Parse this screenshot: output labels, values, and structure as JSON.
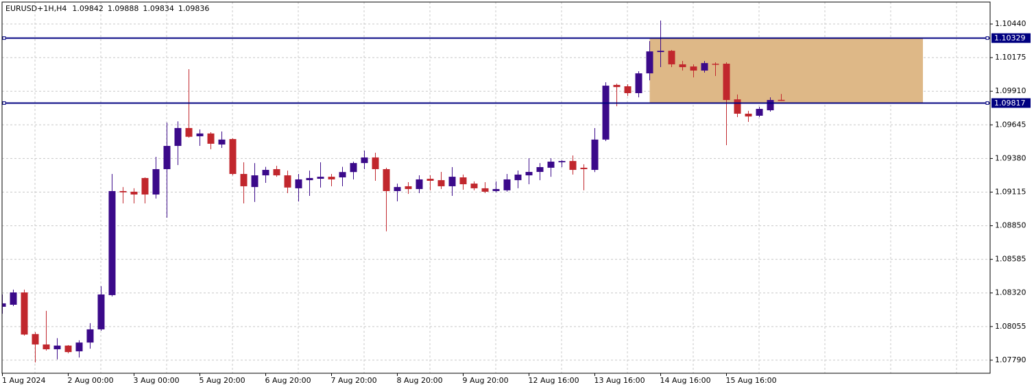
{
  "chart_data": {
    "type": "candlestick",
    "symbol": "EURUSD+1H,H4",
    "categories": [
      "1 Aug 2024",
      null,
      null,
      null,
      null,
      null,
      "2 Aug 00:00",
      null,
      null,
      null,
      null,
      null,
      "3 Aug 00:00",
      null,
      null,
      null,
      null,
      null,
      "5 Aug 20:00",
      null,
      null,
      null,
      null,
      null,
      "6 Aug 20:00",
      null,
      null,
      null,
      null,
      null,
      "7 Aug 20:00",
      null,
      null,
      null,
      null,
      null,
      "8 Aug 20:00",
      null,
      null,
      null,
      null,
      null,
      "9 Aug 20:00",
      null,
      null,
      null,
      null,
      null,
      "12 Aug 16:00",
      null,
      null,
      null,
      null,
      null,
      "13 Aug 16:00",
      null,
      null,
      null,
      null,
      null,
      "14 Aug 16:00",
      null,
      null,
      null,
      null,
      null,
      "15 Aug 16:00",
      null,
      null,
      null,
      null,
      null
    ],
    "open": [
      1.08211,
      1.08227,
      1.08324,
      1.07996,
      1.07914,
      1.07876,
      1.07905,
      1.0786,
      1.07929,
      1.08033,
      1.08303,
      1.09123,
      1.09118,
      1.09226,
      1.09096,
      1.09296,
      1.09479,
      1.0962,
      1.09555,
      1.09577,
      1.0949,
      1.09533,
      1.09258,
      1.09155,
      1.09247,
      1.09296,
      1.09247,
      1.09145,
      1.09209,
      1.0922,
      1.09236,
      1.09231,
      1.09273,
      1.09344,
      1.09388,
      1.09296,
      1.09123,
      1.09161,
      1.09139,
      1.0922,
      1.09209,
      1.09161,
      1.09231,
      1.09182,
      1.09145,
      1.09123,
      1.09129,
      1.09209,
      1.09247,
      1.09274,
      1.09307,
      1.0935,
      1.0936,
      1.09307,
      1.0929,
      1.09529,
      1.0996,
      1.09949,
      1.09895,
      1.10051,
      1.10219,
      1.10229,
      1.10122,
      1.10105,
      1.10073,
      1.10127,
      1.10127,
      1.09846,
      1.09733,
      1.09717,
      1.0976,
      1.09842
    ],
    "high": [
      1.08308,
      1.08346,
      1.08346,
      1.08011,
      1.08179,
      1.07964,
      1.07909,
      1.07947,
      1.08082,
      1.08373,
      1.09258,
      1.09155,
      1.09145,
      1.09231,
      1.09393,
      1.09663,
      1.09672,
      1.10084,
      1.09609,
      1.09587,
      1.09593,
      1.09539,
      1.0935,
      1.09344,
      1.09314,
      1.09322,
      1.09284,
      1.09258,
      1.09284,
      1.0935,
      1.09258,
      1.09314,
      1.09355,
      1.09442,
      1.09425,
      1.09307,
      1.09182,
      1.09193,
      1.09247,
      1.09247,
      1.09274,
      1.09312,
      1.09253,
      1.09199,
      1.09193,
      1.09199,
      1.09258,
      1.09285,
      1.09382,
      1.09344,
      1.09382,
      1.09366,
      1.09404,
      1.09334,
      1.0962,
      1.09981,
      1.0997,
      1.09965,
      1.10068,
      1.10305,
      1.10467,
      1.10235,
      1.10149,
      1.10122,
      1.10149,
      1.10138,
      1.10138,
      1.09884,
      1.09755,
      1.09787,
      1.09862,
      1.09888
    ],
    "low": [
      1.08157,
      1.08216,
      1.07984,
      1.07772,
      1.07866,
      1.07796,
      1.07844,
      1.07811,
      1.07881,
      1.08022,
      1.08292,
      1.09026,
      1.09026,
      1.09026,
      1.09064,
      1.08913,
      1.09328,
      1.09544,
      1.09479,
      1.09453,
      1.09463,
      1.09247,
      1.09026,
      1.09037,
      1.09188,
      1.09236,
      1.09107,
      1.09041,
      1.09085,
      1.09151,
      1.09161,
      1.09161,
      1.09215,
      1.09296,
      1.09204,
      1.08806,
      1.09042,
      1.09101,
      1.09107,
      1.09129,
      1.09139,
      1.09085,
      1.09134,
      1.09129,
      1.09107,
      1.09113,
      1.09118,
      1.09145,
      1.09177,
      1.09209,
      1.09236,
      1.09312,
      1.09253,
      1.09129,
      1.09273,
      1.09517,
      1.09792,
      1.09873,
      1.09862,
      1.09996,
      1.101,
      1.101,
      1.10073,
      1.10019,
      1.10057,
      1.1003,
      1.09485,
      1.09706,
      1.09668,
      1.09706,
      1.09749,
      1.09834
    ],
    "close": [
      1.08238,
      1.08324,
      1.07992,
      1.07914,
      1.07876,
      1.07905,
      1.07854,
      1.07929,
      1.08033,
      1.08308,
      1.09123,
      1.09113,
      1.09096,
      1.09096,
      1.09296,
      1.09479,
      1.0962,
      1.09551,
      1.09577,
      1.09496,
      1.09529,
      1.09258,
      1.09161,
      1.09247,
      1.0929,
      1.09247,
      1.09151,
      1.09215,
      1.09226,
      1.09236,
      1.09215,
      1.09273,
      1.09344,
      1.09388,
      1.09296,
      1.09123,
      1.09155,
      1.09139,
      1.09215,
      1.09204,
      1.09161,
      1.09236,
      1.09177,
      1.09145,
      1.09118,
      1.09139,
      1.09215,
      1.09253,
      1.09274,
      1.09312,
      1.09355,
      1.0936,
      1.0929,
      1.09296,
      1.09529,
      1.09954,
      1.09943,
      1.09895,
      1.10051,
      1.10224,
      1.10229,
      1.10122,
      1.101,
      1.10073,
      1.10132,
      1.10122,
      1.09841,
      1.09733,
      1.09711,
      1.09771,
      1.09841,
      1.09836
    ],
    "up_color": "#3b0a8a",
    "down_color": "#c1272d",
    "ylim": [
      1.07687,
      1.10613
    ],
    "yticks": [
      {
        "value": 1.1044,
        "label": "1.10440"
      },
      1.10175,
      {
        "value": 1.0991,
        "label": "1.09910"
      },
      1.09645,
      {
        "value": 1.0938,
        "label": "1.09380"
      },
      1.09115,
      {
        "value": 1.0885,
        "label": "1.08850"
      },
      1.08585,
      {
        "value": 1.0832,
        "label": "1.08320"
      },
      1.08055,
      {
        "value": 1.0779,
        "label": "1.07790"
      }
    ],
    "grid": true,
    "hlines": [
      {
        "value": 1.10329,
        "color": "#000080"
      },
      {
        "value": 1.09817,
        "color": "#000080"
      }
    ],
    "rectangle": {
      "top": 1.10329,
      "bottom": 1.09817,
      "color": "#deb887"
    }
  }
}
